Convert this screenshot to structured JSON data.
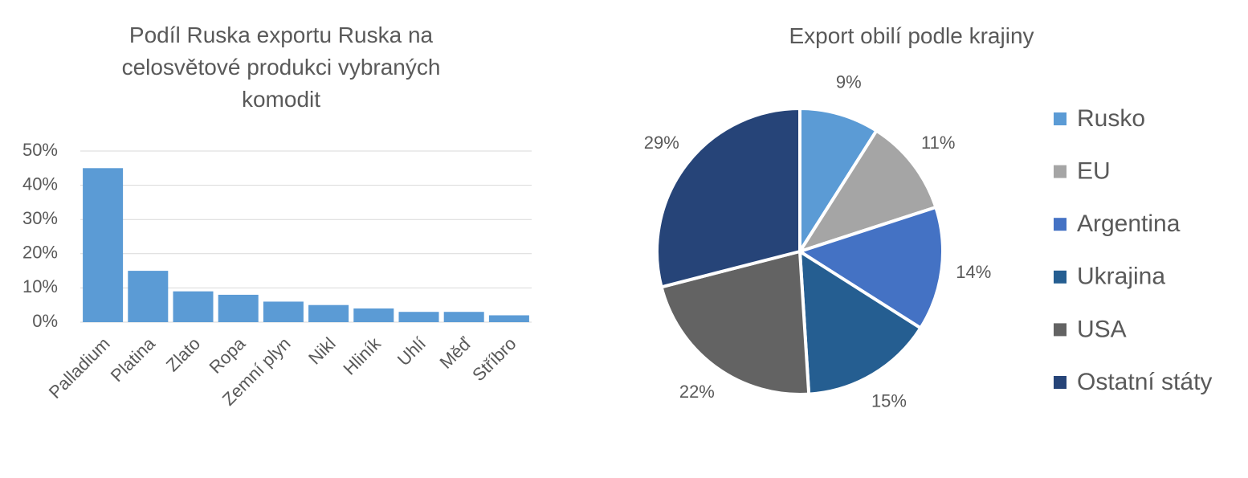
{
  "chart_data": [
    {
      "type": "bar",
      "title": "Podíl Ruska exportu Ruska na celosvětové produkci vybraných komodit",
      "categories": [
        "Palladium",
        "Platina",
        "Zlato",
        "Ropa",
        "Zemní plyn",
        "Nikl",
        "Hliník",
        "Uhlí",
        "Měď",
        "Stříbro"
      ],
      "values": [
        45,
        15,
        9,
        8,
        6,
        5,
        4,
        3,
        3,
        2
      ],
      "color": "#5b9bd5",
      "ylim": [
        0,
        50
      ],
      "yticks": [
        {
          "value": 0,
          "label": "0%"
        },
        {
          "value": 10,
          "label": "10%"
        },
        {
          "value": 20,
          "label": "20%"
        },
        {
          "value": 30,
          "label": "30%"
        },
        {
          "value": 40,
          "label": "40%"
        },
        {
          "value": 50,
          "label": "50%"
        }
      ],
      "grid": true
    },
    {
      "type": "pie",
      "title": "Export obilí podle krajiny",
      "categories": [
        "Rusko",
        "EU",
        "Argentina",
        "Ukrajina",
        "USA",
        "Ostatní státy"
      ],
      "values": [
        9,
        11,
        14,
        15,
        22,
        29
      ],
      "value_labels": [
        "9%",
        "11%",
        "14%",
        "15%",
        "22%",
        "29%"
      ],
      "colors": [
        "#5b9bd5",
        "#a5a5a5",
        "#4472c4",
        "#255e91",
        "#636363",
        "#264478"
      ],
      "legend": "right"
    }
  ]
}
